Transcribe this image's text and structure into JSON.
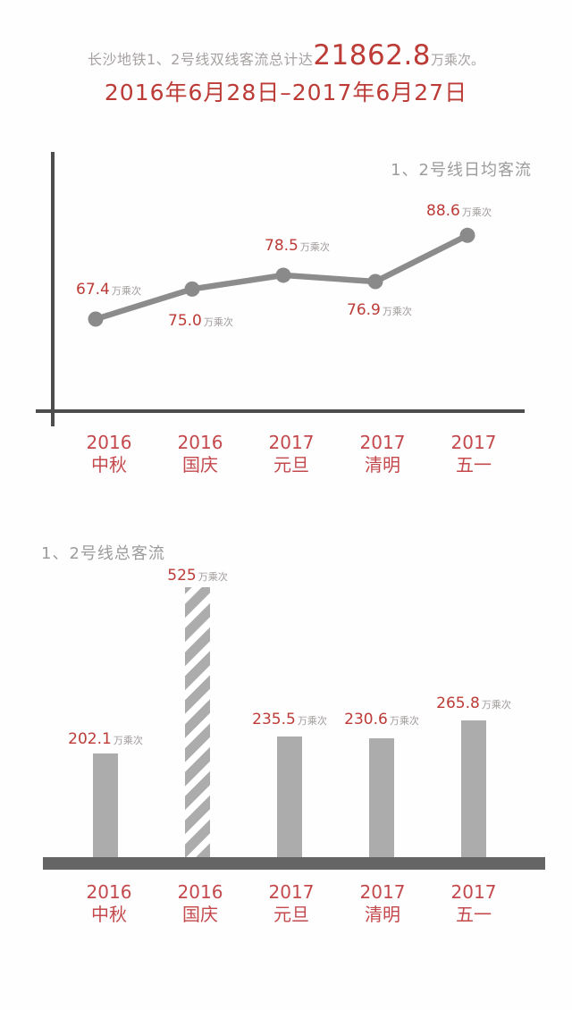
{
  "header": {
    "prefix": "长沙地铁1、2号线双线客流总计达",
    "total": "21862.8",
    "suffix": "万乘次。",
    "date_range": "2016年6月28日–2017年6月27日"
  },
  "colors": {
    "page_bg": "#fefefe",
    "accent_red": "#bc3b36",
    "tick_red": "#c4494d",
    "muted_head": "#a7a1a1",
    "muted_title": "#9c9c9c",
    "muted_unit": "#a09a9a",
    "line_gray": "#8c8c8c",
    "dot_gray": "#8a8a8a",
    "axis_gray": "#4d4d4d",
    "bar_gray": "#acacac",
    "baseline_gray": "#656565"
  },
  "chart_data": [
    {
      "type": "line",
      "title": "1、2号线日均客流",
      "unit": "万乘次",
      "categories": [
        {
          "year": "2016",
          "holiday": "中秋"
        },
        {
          "year": "2016",
          "holiday": "国庆"
        },
        {
          "year": "2017",
          "holiday": "元旦"
        },
        {
          "year": "2017",
          "holiday": "清明"
        },
        {
          "year": "2017",
          "holiday": "五一"
        }
      ],
      "values": [
        67.4,
        75.0,
        78.5,
        76.9,
        88.6
      ],
      "labels": [
        "67.4",
        "75.0",
        "78.5",
        "76.9",
        "88.6"
      ],
      "ylabel": "",
      "xlabel": "",
      "grid": false,
      "legend": "none"
    },
    {
      "type": "bar",
      "title": "1、2号线总客流",
      "unit": "万乘次",
      "categories": [
        {
          "year": "2016",
          "holiday": "中秋"
        },
        {
          "year": "2016",
          "holiday": "国庆"
        },
        {
          "year": "2017",
          "holiday": "元旦"
        },
        {
          "year": "2017",
          "holiday": "清明"
        },
        {
          "year": "2017",
          "holiday": "五一"
        }
      ],
      "values": [
        202.1,
        525,
        235.5,
        230.6,
        265.8
      ],
      "labels": [
        "202.1",
        "525",
        "235.5",
        "230.6",
        "265.8"
      ],
      "highlight_index": 1,
      "ylabel": "",
      "xlabel": "",
      "grid": false,
      "legend": "none"
    }
  ]
}
